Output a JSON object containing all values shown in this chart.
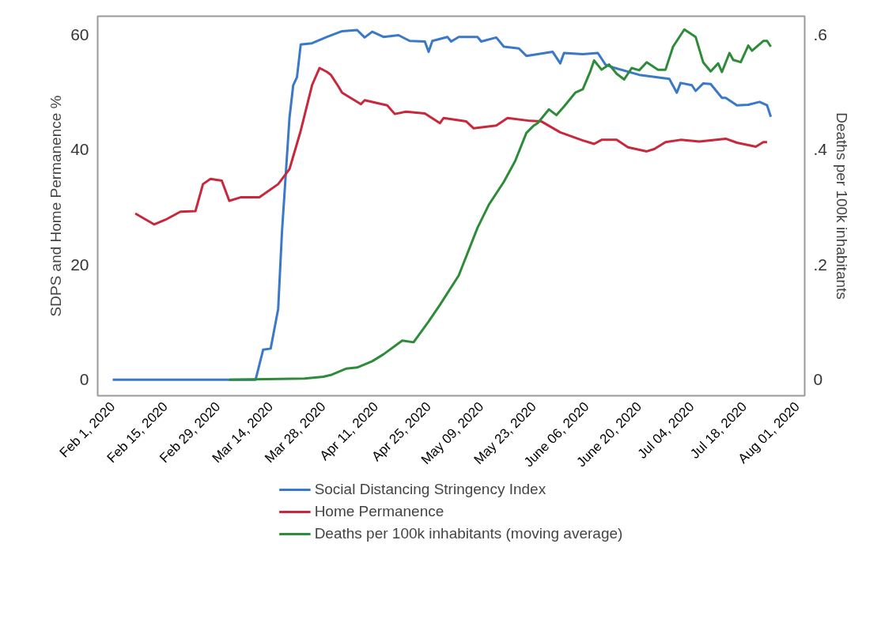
{
  "chart_data": {
    "type": "line",
    "xlabel": null,
    "ylabel": "SDPS and Home Permanence %",
    "y2label": "Deaths per 100k inhabitants",
    "legend": "bottom",
    "line_style": "solid",
    "xlim": [
      "2020-01-28",
      "2020-08-03"
    ],
    "xticks": [
      {
        "value": "2020-02-01",
        "label": "Feb 1, 2020"
      },
      {
        "value": "2020-02-15",
        "label": "Feb 15, 2020"
      },
      {
        "value": "2020-02-29",
        "label": "Feb 29, 2020"
      },
      {
        "value": "2020-03-14",
        "label": "Mar 14, 2020"
      },
      {
        "value": "2020-03-28",
        "label": "Mar 28, 2020"
      },
      {
        "value": "2020-04-11",
        "label": "Apr 11, 2020"
      },
      {
        "value": "2020-04-25",
        "label": "Apr 25, 2020"
      },
      {
        "value": "2020-05-09",
        "label": "May 09, 2020"
      },
      {
        "value": "2020-05-23",
        "label": "May 23, 2020"
      },
      {
        "value": "2020-06-06",
        "label": "June 06, 2020"
      },
      {
        "value": "2020-06-20",
        "label": "June 20, 2020"
      },
      {
        "value": "2020-07-04",
        "label": "Jul 04, 2020"
      },
      {
        "value": "2020-07-18",
        "label": "Jul 18, 2020"
      },
      {
        "value": "2020-08-01",
        "label": "Aug 01, 2020"
      }
    ],
    "ylim": [
      -2.8,
      63.2
    ],
    "yticks": [
      0,
      20,
      40,
      60
    ],
    "y2lim": [
      -0.028,
      0.632
    ],
    "y2ticks": [
      0,
      {
        "value": 0.2,
        "label": ".2"
      },
      {
        "value": 0.4,
        "label": ".4"
      },
      {
        "value": 0.6,
        "label": ".6"
      }
    ],
    "series": [
      {
        "name": "Social Distancing Stringency Index",
        "color": "#3a78c8",
        "x": [
          "2020-02-01",
          "2020-03-10",
          "2020-03-12",
          "2020-03-14",
          "2020-03-16",
          "2020-03-17",
          "2020-03-19",
          "2020-03-20",
          "2020-03-21",
          "2020-03-22",
          "2020-03-25",
          "2020-03-29",
          "2020-04-02",
          "2020-04-06",
          "2020-04-08",
          "2020-04-10",
          "2020-04-13",
          "2020-04-17",
          "2020-04-20",
          "2020-04-24",
          "2020-04-25",
          "2020-04-26",
          "2020-04-30",
          "2020-05-01",
          "2020-05-03",
          "2020-05-08",
          "2020-05-09",
          "2020-05-13",
          "2020-05-15",
          "2020-05-19",
          "2020-05-21",
          "2020-05-28",
          "2020-05-30",
          "2020-05-31",
          "2020-06-05",
          "2020-06-09",
          "2020-06-11",
          "2020-06-13",
          "2020-06-20",
          "2020-06-28",
          "2020-06-30",
          "2020-07-01",
          "2020-07-04",
          "2020-07-05",
          "2020-07-07",
          "2020-07-09",
          "2020-07-12",
          "2020-07-13",
          "2020-07-16",
          "2020-07-19",
          "2020-07-22",
          "2020-07-24",
          "2020-07-25"
        ],
        "values": [
          0,
          0,
          5.2,
          5.4,
          12.3,
          25.6,
          45.5,
          51.2,
          52.6,
          58.3,
          58.5,
          59.6,
          60.6,
          60.8,
          59.5,
          60.5,
          59.6,
          59.9,
          58.9,
          58.8,
          57,
          58.9,
          59.6,
          58.8,
          59.6,
          59.6,
          58.8,
          59.5,
          57.9,
          57.6,
          56.3,
          57,
          55,
          56.8,
          56.6,
          56.8,
          54.8,
          54.3,
          53,
          52.3,
          49.9,
          51.6,
          51.2,
          50.2,
          51.5,
          51.4,
          49,
          49,
          47.7,
          47.8,
          48.3,
          47.7,
          45.7
        ]
      },
      {
        "name": "Home Permanence",
        "color": "#c8283c",
        "x": [
          "2020-02-07",
          "2020-02-12",
          "2020-02-15",
          "2020-02-19",
          "2020-02-23",
          "2020-02-25",
          "2020-02-27",
          "2020-03-01",
          "2020-03-03",
          "2020-03-06",
          "2020-03-11",
          "2020-03-16",
          "2020-03-19",
          "2020-03-22",
          "2020-03-25",
          "2020-03-27",
          "2020-03-29",
          "2020-03-30",
          "2020-04-01",
          "2020-04-02",
          "2020-04-07",
          "2020-04-08",
          "2020-04-14",
          "2020-04-16",
          "2020-04-19",
          "2020-04-24",
          "2020-04-28",
          "2020-04-29",
          "2020-05-05",
          "2020-05-07",
          "2020-05-13",
          "2020-05-16",
          "2020-05-22",
          "2020-05-25",
          "2020-05-30",
          "2020-06-05",
          "2020-06-08",
          "2020-06-10",
          "2020-06-14",
          "2020-06-17",
          "2020-06-22",
          "2020-06-24",
          "2020-06-27",
          "2020-07-01",
          "2020-07-06",
          "2020-07-13",
          "2020-07-16",
          "2020-07-21",
          "2020-07-23",
          "2020-07-24"
        ],
        "values": [
          28.9,
          27,
          27.8,
          29.2,
          29.3,
          34,
          34.9,
          34.6,
          31.1,
          31.7,
          31.7,
          34,
          36.6,
          43.3,
          51.2,
          54.2,
          53.5,
          53,
          51,
          49.9,
          47.9,
          48.6,
          47.7,
          46.2,
          46.6,
          46.3,
          44.6,
          45.5,
          44.9,
          43.7,
          44.2,
          45.5,
          45,
          44.9,
          43,
          41.6,
          41,
          41.7,
          41.7,
          40.4,
          39.7,
          40.1,
          41.3,
          41.7,
          41.4,
          41.9,
          41.2,
          40.5,
          41.3,
          41.3
        ]
      },
      {
        "name": "Deaths per 100k inhabitants (moving average)",
        "color": "#2e8b3a",
        "axis": "y2",
        "x": [
          "2020-03-03",
          "2020-03-23",
          "2020-03-28",
          "2020-03-30",
          "2020-04-03",
          "2020-04-06",
          "2020-04-10",
          "2020-04-13",
          "2020-04-18",
          "2020-04-21",
          "2020-04-25",
          "2020-04-28",
          "2020-05-03",
          "2020-05-08",
          "2020-05-11",
          "2020-05-15",
          "2020-05-18",
          "2020-05-21",
          "2020-05-23",
          "2020-05-24",
          "2020-05-27",
          "2020-05-29",
          "2020-05-31",
          "2020-06-03",
          "2020-06-05",
          "2020-06-07",
          "2020-06-08",
          "2020-06-10",
          "2020-06-12",
          "2020-06-14",
          "2020-06-16",
          "2020-06-18",
          "2020-06-20",
          "2020-06-22",
          "2020-06-25",
          "2020-06-27",
          "2020-06-29",
          "2020-07-02",
          "2020-07-05",
          "2020-07-07",
          "2020-07-09",
          "2020-07-11",
          "2020-07-12",
          "2020-07-14",
          "2020-07-15",
          "2020-07-17",
          "2020-07-19",
          "2020-07-20",
          "2020-07-23",
          "2020-07-24",
          "2020-07-25"
        ],
        "values": [
          0,
          0.002,
          0.005,
          0.008,
          0.019,
          0.021,
          0.032,
          0.044,
          0.068,
          0.065,
          0.101,
          0.13,
          0.181,
          0.264,
          0.304,
          0.344,
          0.38,
          0.429,
          0.442,
          0.446,
          0.47,
          0.46,
          0.475,
          0.499,
          0.505,
          0.536,
          0.555,
          0.539,
          0.548,
          0.532,
          0.522,
          0.542,
          0.538,
          0.552,
          0.539,
          0.539,
          0.579,
          0.609,
          0.596,
          0.552,
          0.536,
          0.55,
          0.535,
          0.568,
          0.556,
          0.552,
          0.581,
          0.572,
          0.589,
          0.589,
          0.579
        ]
      }
    ]
  }
}
